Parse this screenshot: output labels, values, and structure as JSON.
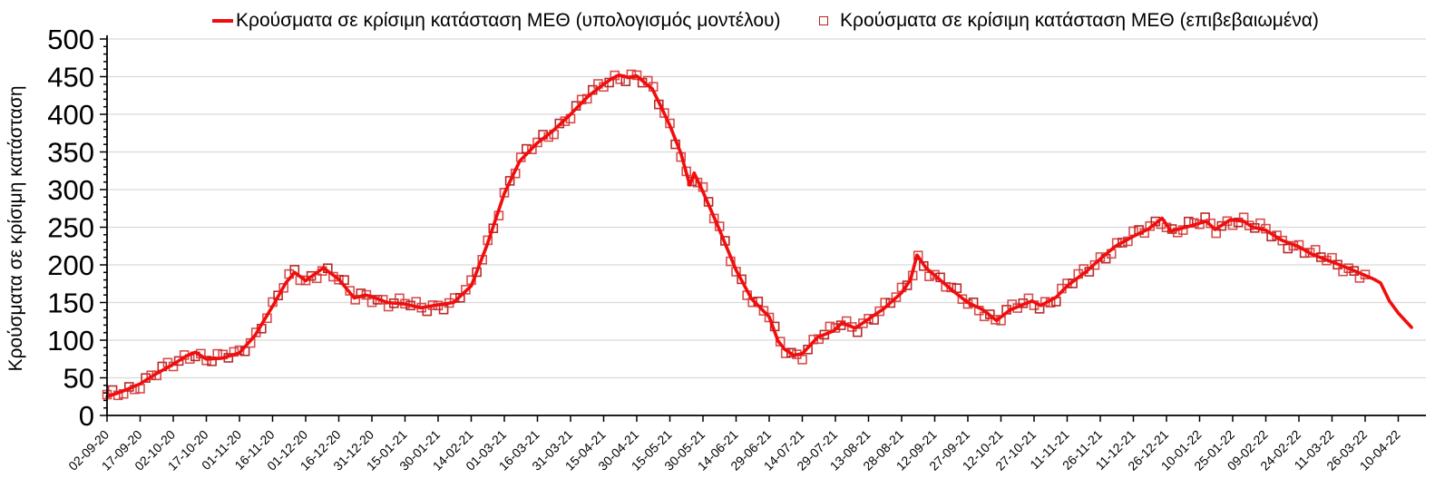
{
  "legend": [
    {
      "label": "Κρούσματα σε κρίσιμη κατάσταση ΜΕΘ (υπολογισμός μοντέλου)",
      "swatch": "red-line",
      "color": "#f20d0d"
    },
    {
      "label": "Κρούσματα σε κρίσιμη κατάσταση ΜΕΘ (επιβεβαιωμένα)",
      "swatch": "open-square",
      "color": "#b22222"
    }
  ],
  "axes": {
    "y_label": "Κρούσματα σε κρίσιμη κατάσταση",
    "y_ticks": [
      0,
      50,
      100,
      150,
      200,
      250,
      300,
      350,
      400,
      450,
      500
    ],
    "x_tick_labels": [
      "02-09-20",
      "17-09-20",
      "02-10-20",
      "17-10-20",
      "01-11-20",
      "16-11-20",
      "01-12-20",
      "16-12-20",
      "31-12-20",
      "15-01-21",
      "30-01-21",
      "14-02-21",
      "01-03-21",
      "16-03-21",
      "31-03-21",
      "15-04-21",
      "30-04-21",
      "15-05-21",
      "30-05-21",
      "14-06-21",
      "29-06-21",
      "14-07-21",
      "29-07-21",
      "13-08-21",
      "28-08-21",
      "12-09-21",
      "27-09-21",
      "12-10-21",
      "27-10-21",
      "11-11-21",
      "26-11-21",
      "11-12-21",
      "26-12-21",
      "10-01-22",
      "25-01-22",
      "09-02-22",
      "24-02-22",
      "11-03-22",
      "26-03-22",
      "10-04-22"
    ]
  },
  "colors": {
    "model_line": "#f20d0d",
    "marker_dark": "#b01414",
    "marker_light": "#d43a3a",
    "gridline": "#d9d9d9",
    "axis": "#000000"
  },
  "chart_data": {
    "type": "line",
    "title": "",
    "xlabel": "",
    "ylabel": "Κρούσματα σε κρίσιμη κατάσταση",
    "ylim": [
      0,
      500
    ],
    "grid": "horizontal",
    "legend_position": "top-center",
    "x_tick_step_days": 15,
    "series": [
      {
        "name": "Κρούσματα σε κρίσιμη κατάσταση ΜΕΘ (υπολογισμός μοντέλου)",
        "style": "solid-line",
        "points": [
          [
            "02-09-20",
            25
          ],
          [
            "09-09-20",
            32
          ],
          [
            "17-09-20",
            42
          ],
          [
            "24-09-20",
            55
          ],
          [
            "02-10-20",
            68
          ],
          [
            "08-10-20",
            79
          ],
          [
            "12-10-20",
            84
          ],
          [
            "17-10-20",
            75
          ],
          [
            "24-10-20",
            76
          ],
          [
            "01-11-20",
            83
          ],
          [
            "08-11-20",
            106
          ],
          [
            "16-11-20",
            145
          ],
          [
            "22-11-20",
            176
          ],
          [
            "26-11-20",
            190
          ],
          [
            "01-12-20",
            179
          ],
          [
            "09-12-20",
            196
          ],
          [
            "16-12-20",
            181
          ],
          [
            "23-12-20",
            156
          ],
          [
            "28-12-20",
            160
          ],
          [
            "31-12-20",
            158
          ],
          [
            "07-01-21",
            150
          ],
          [
            "15-01-21",
            148
          ],
          [
            "22-01-21",
            143
          ],
          [
            "30-01-21",
            147
          ],
          [
            "06-02-21",
            150
          ],
          [
            "14-02-21",
            172
          ],
          [
            "21-02-21",
            225
          ],
          [
            "01-03-21",
            295
          ],
          [
            "08-03-21",
            338
          ],
          [
            "16-03-21",
            362
          ],
          [
            "23-03-21",
            378
          ],
          [
            "31-03-21",
            400
          ],
          [
            "08-04-21",
            424
          ],
          [
            "15-04-21",
            440
          ],
          [
            "19-04-21",
            448
          ],
          [
            "22-04-21",
            452
          ],
          [
            "26-04-21",
            449
          ],
          [
            "30-04-21",
            451
          ],
          [
            "04-05-21",
            441
          ],
          [
            "07-05-21",
            434
          ],
          [
            "11-05-21",
            410
          ],
          [
            "15-05-21",
            385
          ],
          [
            "20-05-21",
            348
          ],
          [
            "24-05-21",
            306
          ],
          [
            "26-05-21",
            322
          ],
          [
            "30-05-21",
            297
          ],
          [
            "06-06-21",
            250
          ],
          [
            "14-06-21",
            193
          ],
          [
            "21-06-21",
            155
          ],
          [
            "29-06-21",
            131
          ],
          [
            "03-07-21",
            99
          ],
          [
            "06-07-21",
            88
          ],
          [
            "10-07-21",
            80
          ],
          [
            "14-07-21",
            82
          ],
          [
            "21-07-21",
            104
          ],
          [
            "28-07-21",
            112
          ],
          [
            "01-08-21",
            123
          ],
          [
            "07-08-21",
            116
          ],
          [
            "13-08-21",
            128
          ],
          [
            "20-08-21",
            142
          ],
          [
            "28-08-21",
            163
          ],
          [
            "01-09-21",
            180
          ],
          [
            "04-09-21",
            213
          ],
          [
            "08-09-21",
            196
          ],
          [
            "12-09-21",
            186
          ],
          [
            "20-09-21",
            166
          ],
          [
            "27-09-21",
            150
          ],
          [
            "04-10-21",
            140
          ],
          [
            "10-10-21",
            126
          ],
          [
            "16-10-21",
            140
          ],
          [
            "26-10-21",
            152
          ],
          [
            "30-10-21",
            146
          ],
          [
            "06-11-21",
            157
          ],
          [
            "11-11-21",
            172
          ],
          [
            "20-11-21",
            192
          ],
          [
            "26-11-21",
            208
          ],
          [
            "03-12-21",
            225
          ],
          [
            "11-12-21",
            238
          ],
          [
            "18-12-21",
            248
          ],
          [
            "24-12-21",
            262
          ],
          [
            "28-12-21",
            245
          ],
          [
            "05-01-22",
            251
          ],
          [
            "13-01-22",
            258
          ],
          [
            "17-01-22",
            247
          ],
          [
            "24-01-22",
            260
          ],
          [
            "30-01-22",
            258
          ],
          [
            "03-02-22",
            250
          ],
          [
            "09-02-22",
            246
          ],
          [
            "16-02-22",
            233
          ],
          [
            "24-02-22",
            224
          ],
          [
            "02-03-22",
            214
          ],
          [
            "11-03-22",
            204
          ],
          [
            "18-03-22",
            196
          ],
          [
            "26-03-22",
            186
          ],
          [
            "30-03-22",
            181
          ],
          [
            "02-04-22",
            176
          ],
          [
            "06-04-22",
            152
          ],
          [
            "10-04-22",
            136
          ],
          [
            "16-04-22",
            117
          ]
        ]
      },
      {
        "name": "Κρούσματα σε κρίσιμη κατάσταση ΜΕΘ (επιβεβαιωμένα)",
        "style": "open-square-markers",
        "note": "daily reported values scattering tightly (±8) around the model curve",
        "start_date": "02-09-20",
        "end_date": "28-03-22",
        "peak_value": 455,
        "jitter_amplitude": 8
      }
    ]
  }
}
